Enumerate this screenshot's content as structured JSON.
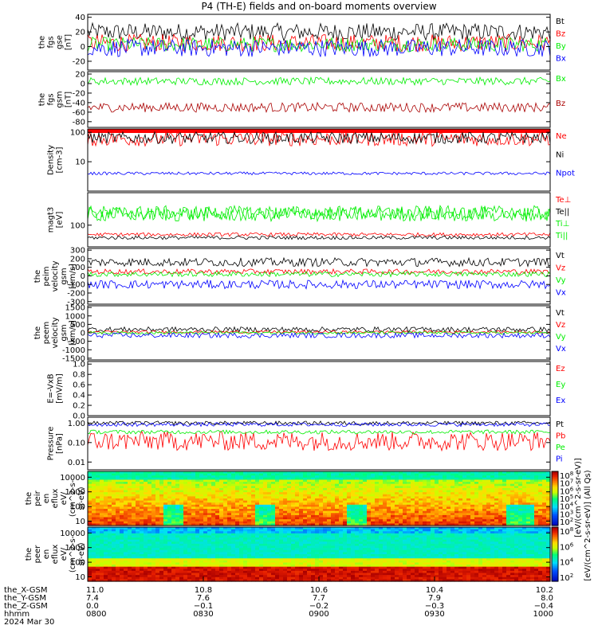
{
  "title": "P4 (TH-E) fields and on-board moments overview",
  "colors": {
    "black": "#000000",
    "red": "#ff0000",
    "green": "#00ee00",
    "blue": "#0000ff",
    "darkred": "#aa0000"
  },
  "chart_data": [
    {
      "id": "p1",
      "type": "line",
      "ylabel_lines": [
        "the",
        "fgs",
        "gse",
        "[nT]"
      ],
      "yticks": [
        "40",
        "20",
        "0",
        "-20"
      ],
      "ytick_vals": [
        40,
        20,
        0,
        -20
      ],
      "ylim": [
        -32,
        44
      ],
      "series": [
        {
          "name": "Bt",
          "color": "black",
          "level": 20,
          "amp": 12
        },
        {
          "name": "Bz",
          "color": "red",
          "level": 5,
          "amp": 12
        },
        {
          "name": "By",
          "color": "green",
          "level": 3,
          "amp": 10
        },
        {
          "name": "Bx",
          "color": "blue",
          "level": -2,
          "amp": 12
        }
      ]
    },
    {
      "id": "p2",
      "type": "line",
      "ylabel_lines": [
        "the",
        "fgs",
        "gsm",
        "[nT]"
      ],
      "yticks": [
        "20",
        "0",
        "-20",
        "-40",
        "-60",
        "-80"
      ],
      "ytick_vals": [
        20,
        0,
        -20,
        -40,
        -60,
        -80
      ],
      "ylim": [
        -92,
        25
      ],
      "series": [
        {
          "name": "Bx",
          "color": "green",
          "level": 5,
          "amp": 8
        },
        {
          "name": "Bz",
          "color": "darkred",
          "level": -50,
          "amp": 10
        }
      ]
    },
    {
      "id": "p3",
      "type": "line",
      "ylabel_lines": [
        "Density",
        "[cm-3]"
      ],
      "yticks": [
        "100",
        "10"
      ],
      "ytick_vals": [
        100,
        10
      ],
      "ylim": [
        1,
        130
      ],
      "log": true,
      "series": [
        {
          "name": "Ne",
          "color": "red",
          "level": 60,
          "amp": 0.25
        },
        {
          "name": "Ni",
          "color": "black",
          "level": 65,
          "amp": 0.2
        },
        {
          "name": "Npot",
          "color": "blue",
          "level": 4,
          "amp": 0.05
        }
      ]
    },
    {
      "id": "p4",
      "type": "line",
      "ylabel_lines": [
        "magt3",
        "[eV]"
      ],
      "yticks": [
        "100"
      ],
      "ytick_vals": [
        100
      ],
      "ylim": [
        25,
        800
      ],
      "log": true,
      "series": [
        {
          "name": "Te⊥",
          "color": "red",
          "level": 55,
          "amp": 0.05
        },
        {
          "name": "Te||",
          "color": "black",
          "level": 45,
          "amp": 0.05
        },
        {
          "name": "Ti⊥",
          "color": "green",
          "level": 220,
          "amp": 0.2
        },
        {
          "name": "Ti||",
          "color": "green",
          "level": 200,
          "amp": 0.2
        }
      ]
    },
    {
      "id": "p5",
      "type": "line",
      "ylabel_lines": [
        "the",
        "peim",
        "velocity",
        "gsm",
        "[km/s]"
      ],
      "yticks": [
        "300",
        "200",
        "100",
        "0",
        "-100",
        "-200",
        "-300"
      ],
      "ytick_vals": [
        300,
        200,
        100,
        0,
        -100,
        -200,
        -300
      ],
      "ylim": [
        -330,
        320
      ],
      "series": [
        {
          "name": "Vt",
          "color": "black",
          "level": 160,
          "amp": 50
        },
        {
          "name": "Vz",
          "color": "red",
          "level": 50,
          "amp": 30
        },
        {
          "name": "Vy",
          "color": "green",
          "level": 20,
          "amp": 30
        },
        {
          "name": "Vx",
          "color": "blue",
          "level": -100,
          "amp": 50
        }
      ]
    },
    {
      "id": "p6",
      "type": "line",
      "ylabel_lines": [
        "the",
        "peem",
        "velocity",
        "gsm",
        "[km/s]"
      ],
      "yticks": [
        "1500",
        "1000",
        "500",
        "0",
        "-500",
        "-1000",
        "-1500"
      ],
      "ytick_vals": [
        1500,
        1000,
        500,
        0,
        -500,
        -1000,
        -1500
      ],
      "ylim": [
        -1600,
        1600
      ],
      "series": [
        {
          "name": "Vt",
          "color": "black",
          "level": 200,
          "amp": 150
        },
        {
          "name": "Vz",
          "color": "red",
          "level": 50,
          "amp": 80
        },
        {
          "name": "Vy",
          "color": "green",
          "level": 0,
          "amp": 80
        },
        {
          "name": "Vx",
          "color": "blue",
          "level": -150,
          "amp": 150
        }
      ]
    },
    {
      "id": "p7",
      "type": "line",
      "ylabel_lines": [
        "E=-VxB",
        "[mV/m]"
      ],
      "yticks": [
        "1.0",
        "0.8",
        "0.6",
        "0.4",
        "0.2",
        "0.0"
      ],
      "ytick_vals": [
        1.0,
        0.8,
        0.6,
        0.4,
        0.2,
        0.0
      ],
      "ylim": [
        0,
        1.05
      ],
      "series": [
        {
          "name": "Ez",
          "color": "red"
        },
        {
          "name": "Ey",
          "color": "green"
        },
        {
          "name": "Ex",
          "color": "blue"
        }
      ]
    },
    {
      "id": "p8",
      "type": "line",
      "ylabel_lines": [
        "Pressure",
        "[nPa]"
      ],
      "yticks": [
        "1.00",
        "0.10",
        "0.01"
      ],
      "ytick_vals": [
        1,
        0.1,
        0.01
      ],
      "ylim": [
        0.004,
        2
      ],
      "log": true,
      "series": [
        {
          "name": "Pt",
          "color": "black",
          "level": 1.0,
          "amp": 0.1
        },
        {
          "name": "Pb",
          "color": "red",
          "level": 0.12,
          "amp": 0.5
        },
        {
          "name": "Pe",
          "color": "green",
          "level": 0.35,
          "amp": 0.1
        },
        {
          "name": "Pi",
          "color": "blue",
          "level": 0.85,
          "amp": 0.1
        }
      ]
    },
    {
      "id": "p9",
      "type": "heatmap",
      "ylabel_lines": [
        "the",
        "peir",
        "en",
        "eflux",
        "eV/",
        "(cm^2-s-",
        "sr-eV)"
      ],
      "yticks": [
        "10000",
        "1000",
        "100",
        "10"
      ],
      "ytick_vals": [
        10000,
        1000,
        100,
        10
      ],
      "ylim": [
        5,
        25000
      ],
      "log": true
    },
    {
      "id": "p10",
      "type": "heatmap",
      "ylabel_lines": [
        "the",
        "peer",
        "en",
        "eflux",
        "eV/",
        "(cm^2-s-",
        "sr-eV)"
      ],
      "yticks": [
        "10000",
        "1000",
        "100",
        "10"
      ],
      "ytick_vals": [
        10000,
        1000,
        100,
        10
      ],
      "ylim": [
        5,
        25000
      ],
      "log": true
    }
  ],
  "colorbar": {
    "upper_ticks": [
      "10^8",
      "10^7",
      "10^6",
      "10^5",
      "10^4",
      "10^3",
      "10^2"
    ],
    "lower_ticks": [
      "10^8",
      "10^6",
      "10^4",
      "10^2"
    ],
    "label": "[eV/(cm^2-s-sr-eV)] (All Qs)",
    "label2": "[eV/(cm^2-s-sr-eV)]"
  },
  "xaxis": {
    "rows": [
      {
        "label": "the_X-GSM",
        "values": [
          "11.0",
          "10.8",
          "10.6",
          "10.4",
          "10.2"
        ]
      },
      {
        "label": "the_Y-GSM",
        "values": [
          "7.4",
          "7.6",
          "7.7",
          "7.9",
          "8.0"
        ]
      },
      {
        "label": "the_Z-GSM",
        "values": [
          "0.0",
          "−0.1",
          "−0.2",
          "−0.3",
          "−0.4"
        ]
      },
      {
        "label": "hhmm",
        "values": [
          "0800",
          "0830",
          "0900",
          "0930",
          "1000"
        ]
      }
    ],
    "date": "2024 Mar 30"
  }
}
